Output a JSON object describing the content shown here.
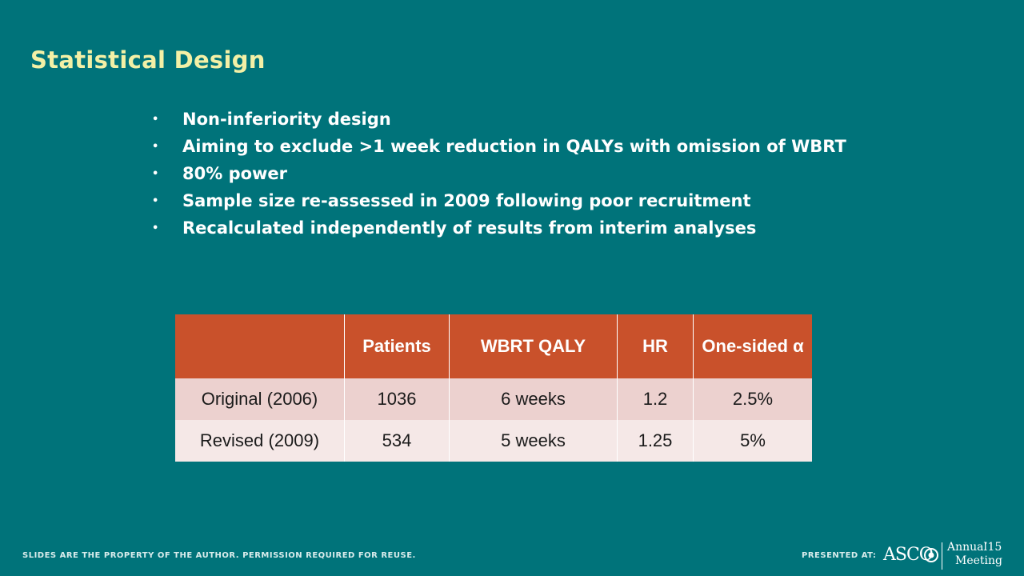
{
  "slide": {
    "title": "Statistical Design",
    "bullets": [
      "Non-inferiority design",
      "Aiming to exclude >1 week reduction in QALYs with omission of WBRT",
      "80% power",
      "Sample size re-assessed in 2009 following poor recruitment",
      "Recalculated independently of results from interim analyses"
    ],
    "bullet_glyph": "•"
  },
  "table": {
    "headers": [
      "",
      "Patients",
      "WBRT QALY",
      "HR",
      "One-sided α"
    ],
    "rows": [
      [
        "Original (2006)",
        "1036",
        "6 weeks",
        "1.2",
        "2.5%"
      ],
      [
        "Revised (2009)",
        "534",
        "5 weeks",
        "1.25",
        "5%"
      ]
    ]
  },
  "footer": {
    "disclaimer": "SLIDES ARE THE PROPERTY OF THE AUTHOR. PERMISSION REQUIRED FOR REUSE.",
    "presented_at": "PRESENTED AT:",
    "logo": {
      "org": "ASCO",
      "line1": "Annual",
      "year": "’15",
      "line2": "Meeting"
    }
  },
  "colors": {
    "background": "#00737a",
    "title": "#f3f0a6",
    "table_header": "#c9512b",
    "row_odd": "#ecd1cf",
    "row_even": "#f5e8e7"
  }
}
